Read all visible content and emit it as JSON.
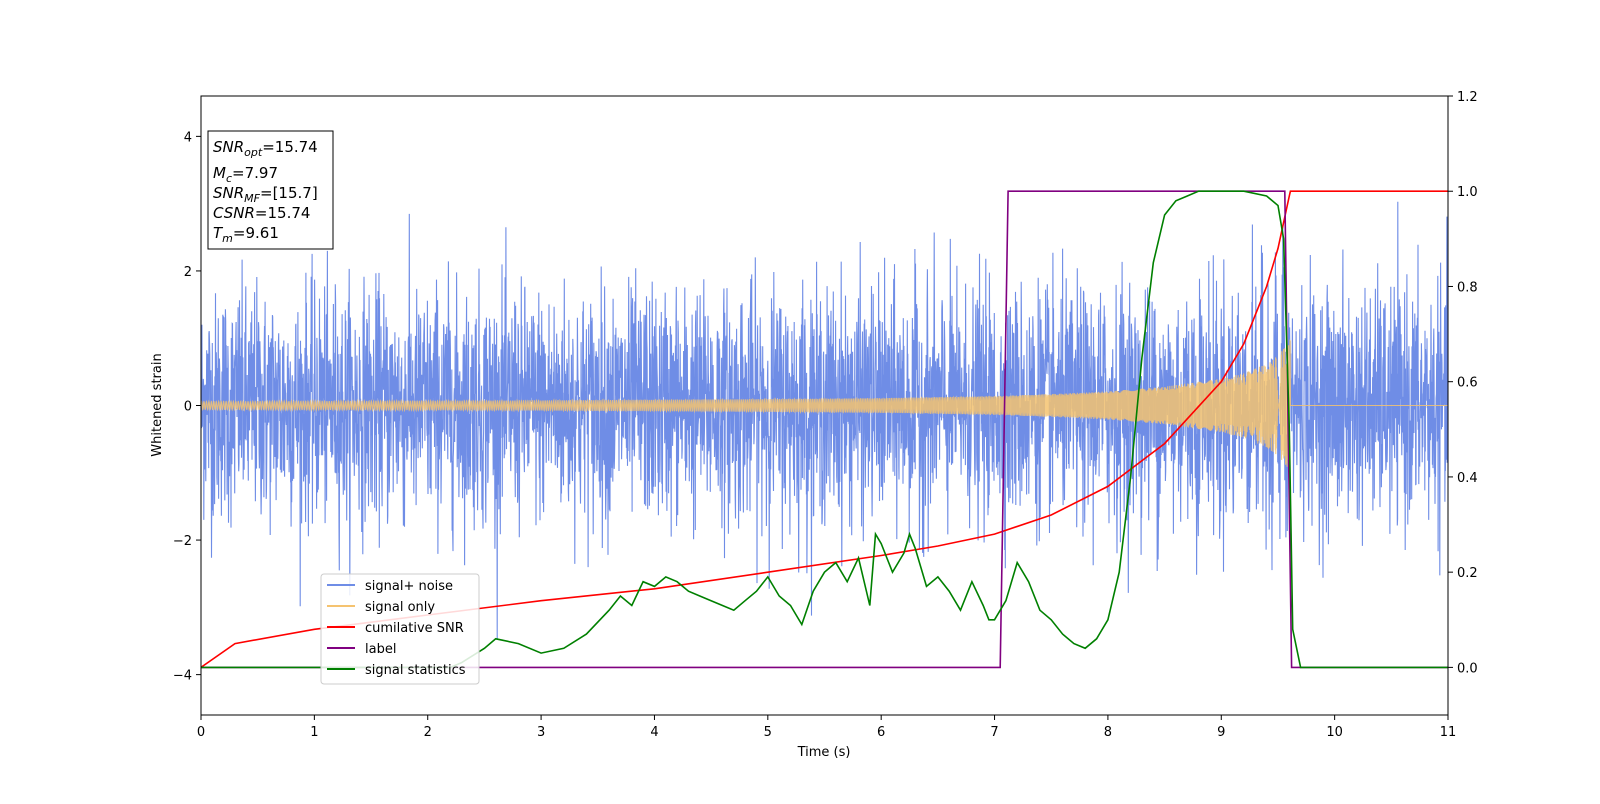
{
  "chart_data": {
    "type": "line",
    "xlabel": "Time (s)",
    "ylabel": "Whitened strain",
    "xlim": [
      0,
      11
    ],
    "ylim": [
      -4.6,
      4.6
    ],
    "y2lim": [
      -0.1,
      1.2
    ],
    "x_ticks": [
      0,
      1,
      2,
      3,
      4,
      5,
      6,
      7,
      8,
      9,
      10,
      11
    ],
    "y_ticks": [
      -4,
      -2,
      0,
      2,
      4
    ],
    "y2_ticks": [
      "0.0",
      "0.2",
      "0.4",
      "0.6",
      "0.8",
      "1.0",
      "1.2"
    ],
    "colors": {
      "noise": "#6f8de6",
      "signal": "#f5c370",
      "cumsnr": "#ff0000",
      "label": "#800080",
      "stat": "#008000"
    },
    "info_box": {
      "snr_opt": {
        "sym": "SNR",
        "sub": "opt",
        "val": "=15.74"
      },
      "mc": {
        "sym": "M",
        "sub": "c",
        "val": "=7.97"
      },
      "snr_mf": {
        "sym": "SNR",
        "sub": "MF",
        "val": "=[15.7]"
      },
      "csnr": {
        "sym": "CSNR",
        "sub": "",
        "val": "=15.74"
      },
      "tm": {
        "sym": "T",
        "sub": "m",
        "val": "=9.61"
      }
    },
    "legend": {
      "placement": "lower-left",
      "entries": [
        "signal+ noise",
        "signal only",
        "cumilative SNR",
        "label",
        "signal statistics"
      ]
    },
    "series": [
      {
        "name": "signal+ noise",
        "axis": "left",
        "description_level": "noise",
        "noise_std": 0.85,
        "noise_range": [
          -4.2,
          4.2
        ]
      },
      {
        "name": "signal only",
        "axis": "left",
        "envelope": {
          "x": [
            0,
            1,
            2,
            3,
            4,
            5,
            6,
            7,
            7.5,
            8,
            8.5,
            9,
            9.2,
            9.4,
            9.5,
            9.55,
            9.6,
            9.61
          ],
          "y": [
            0.06,
            0.065,
            0.07,
            0.075,
            0.085,
            0.095,
            0.11,
            0.14,
            0.17,
            0.21,
            0.28,
            0.4,
            0.48,
            0.62,
            0.75,
            0.85,
            0.95,
            1.0
          ]
        }
      },
      {
        "name": "cumilative SNR",
        "axis": "right",
        "x": [
          0,
          0.3,
          1,
          2,
          3,
          4,
          5,
          6,
          6.5,
          7,
          7.5,
          8,
          8.5,
          9,
          9.2,
          9.4,
          9.5,
          9.6,
          9.61,
          11
        ],
        "y": [
          0.0,
          0.05,
          0.08,
          0.11,
          0.14,
          0.165,
          0.2,
          0.235,
          0.255,
          0.28,
          0.32,
          0.38,
          0.47,
          0.6,
          0.68,
          0.8,
          0.88,
          0.99,
          1.0,
          1.0
        ]
      },
      {
        "name": "label",
        "axis": "right",
        "x": [
          0,
          7.05,
          7.12,
          9.56,
          9.62,
          11
        ],
        "y": [
          0,
          0,
          1,
          1,
          0,
          0
        ]
      },
      {
        "name": "signal statistics",
        "axis": "right",
        "x": [
          0,
          2.2,
          2.3,
          2.5,
          2.6,
          2.8,
          3.0,
          3.2,
          3.4,
          3.6,
          3.7,
          3.8,
          3.9,
          4.0,
          4.1,
          4.2,
          4.3,
          4.4,
          4.5,
          4.6,
          4.7,
          4.8,
          4.9,
          5.0,
          5.1,
          5.2,
          5.3,
          5.4,
          5.5,
          5.6,
          5.7,
          5.8,
          5.9,
          5.95,
          6.0,
          6.1,
          6.2,
          6.25,
          6.3,
          6.4,
          6.5,
          6.6,
          6.7,
          6.8,
          6.9,
          6.95,
          7.0,
          7.1,
          7.2,
          7.3,
          7.4,
          7.5,
          7.6,
          7.7,
          7.8,
          7.9,
          8.0,
          8.1,
          8.2,
          8.3,
          8.4,
          8.5,
          8.6,
          8.7,
          8.8,
          9.0,
          9.2,
          9.4,
          9.5,
          9.55,
          9.6,
          9.63,
          9.7,
          11
        ],
        "y": [
          0,
          0,
          0.01,
          0.04,
          0.06,
          0.05,
          0.03,
          0.04,
          0.07,
          0.12,
          0.15,
          0.13,
          0.18,
          0.17,
          0.19,
          0.18,
          0.16,
          0.15,
          0.14,
          0.13,
          0.12,
          0.14,
          0.16,
          0.19,
          0.15,
          0.13,
          0.09,
          0.16,
          0.2,
          0.22,
          0.18,
          0.23,
          0.13,
          0.28,
          0.26,
          0.2,
          0.24,
          0.28,
          0.25,
          0.17,
          0.19,
          0.16,
          0.12,
          0.18,
          0.13,
          0.1,
          0.1,
          0.14,
          0.22,
          0.18,
          0.12,
          0.1,
          0.07,
          0.05,
          0.04,
          0.06,
          0.1,
          0.2,
          0.4,
          0.65,
          0.85,
          0.95,
          0.98,
          0.99,
          1.0,
          1.0,
          1.0,
          0.99,
          0.97,
          0.9,
          0.5,
          0.08,
          0.0,
          0.0
        ]
      }
    ]
  }
}
